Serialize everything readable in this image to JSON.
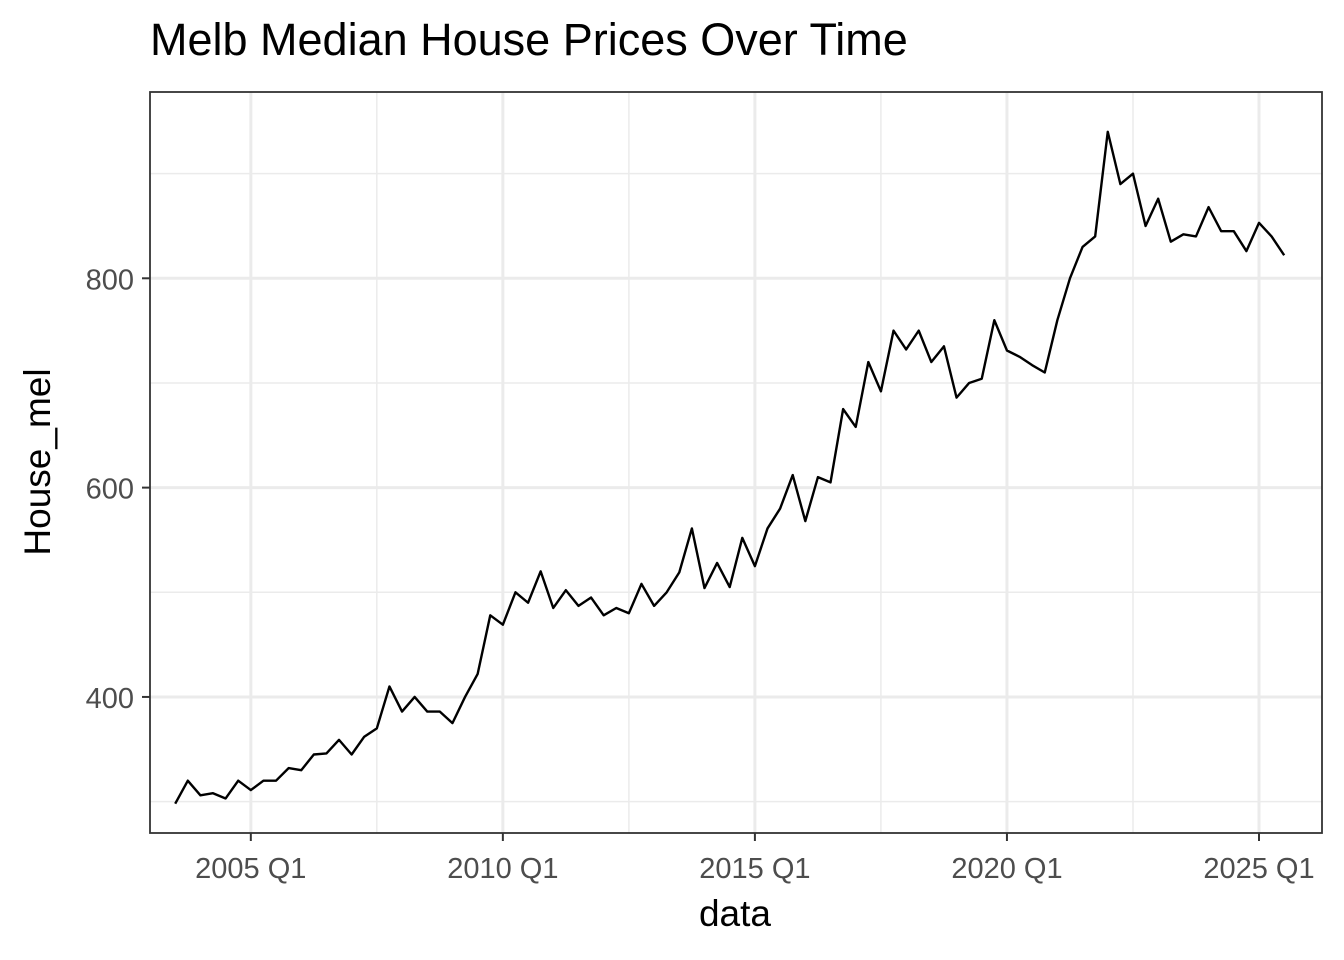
{
  "chart_data": {
    "type": "line",
    "title": "Melb Median House Prices Over Time",
    "xlabel": "data",
    "ylabel": "House_mel",
    "x_start": "2003 Q3",
    "x_tick_labels": [
      "2005 Q1",
      "2010 Q1",
      "2015 Q1",
      "2020 Q1",
      "2025 Q1"
    ],
    "x_ticks_t": [
      2005.0,
      2010.0,
      2015.0,
      2020.0,
      2025.0
    ],
    "x_minor_t": [
      2007.5,
      2012.5,
      2017.5,
      2022.5
    ],
    "xlim": [
      2003.0,
      2026.25
    ],
    "y_tick_labels": [
      "400",
      "600",
      "800"
    ],
    "y_ticks": [
      400,
      600,
      800
    ],
    "y_minor": [
      300,
      500,
      700,
      900
    ],
    "ylim": [
      270,
      978
    ],
    "grid": true,
    "series": [
      {
        "name": "House_mel",
        "color": "#000000",
        "values": [
          298,
          320,
          306,
          308,
          303,
          320,
          311,
          320,
          320,
          332,
          330,
          345,
          346,
          359,
          345,
          362,
          370,
          410,
          386,
          400,
          386,
          386,
          375,
          400,
          422,
          478,
          469,
          500,
          490,
          520,
          485,
          502,
          487,
          495,
          478,
          485,
          480,
          508,
          487,
          500,
          519,
          561,
          504,
          528,
          505,
          552,
          525,
          561,
          580,
          612,
          568,
          610,
          605,
          675,
          658,
          720,
          692,
          750,
          732,
          750,
          720,
          735,
          686,
          700,
          704,
          760,
          731,
          725,
          717,
          710,
          760,
          800,
          830,
          840,
          940,
          890,
          900,
          850,
          876,
          835,
          842,
          840,
          868,
          845,
          845,
          826,
          853,
          840,
          822
        ]
      }
    ]
  }
}
